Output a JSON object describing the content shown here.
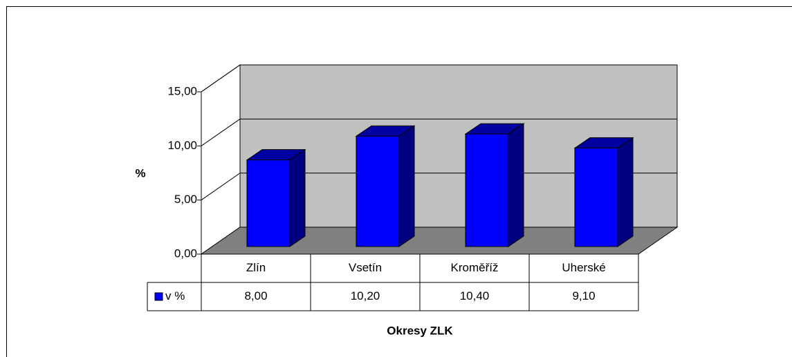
{
  "chart_data": {
    "type": "bar3d",
    "categories": [
      "Zlín",
      "Vsetín",
      "Kroměříž",
      "Uherské"
    ],
    "series": [
      {
        "name": "v %",
        "color": "#0000ff",
        "values": [
          8,
          10.2,
          10.4,
          9.1
        ],
        "value_labels": [
          "8,00",
          "10,20",
          "10,40",
          "9,10"
        ]
      }
    ],
    "ylim": [
      0,
      15
    ],
    "yticks": [
      {
        "value": 0,
        "label": "0,00"
      },
      {
        "value": 5,
        "label": "5,00"
      },
      {
        "value": 10,
        "label": "10,00"
      },
      {
        "value": 15,
        "label": "15,00"
      }
    ],
    "ylabel": "%",
    "xlabel": "Okresy ZLK",
    "grid": true
  }
}
